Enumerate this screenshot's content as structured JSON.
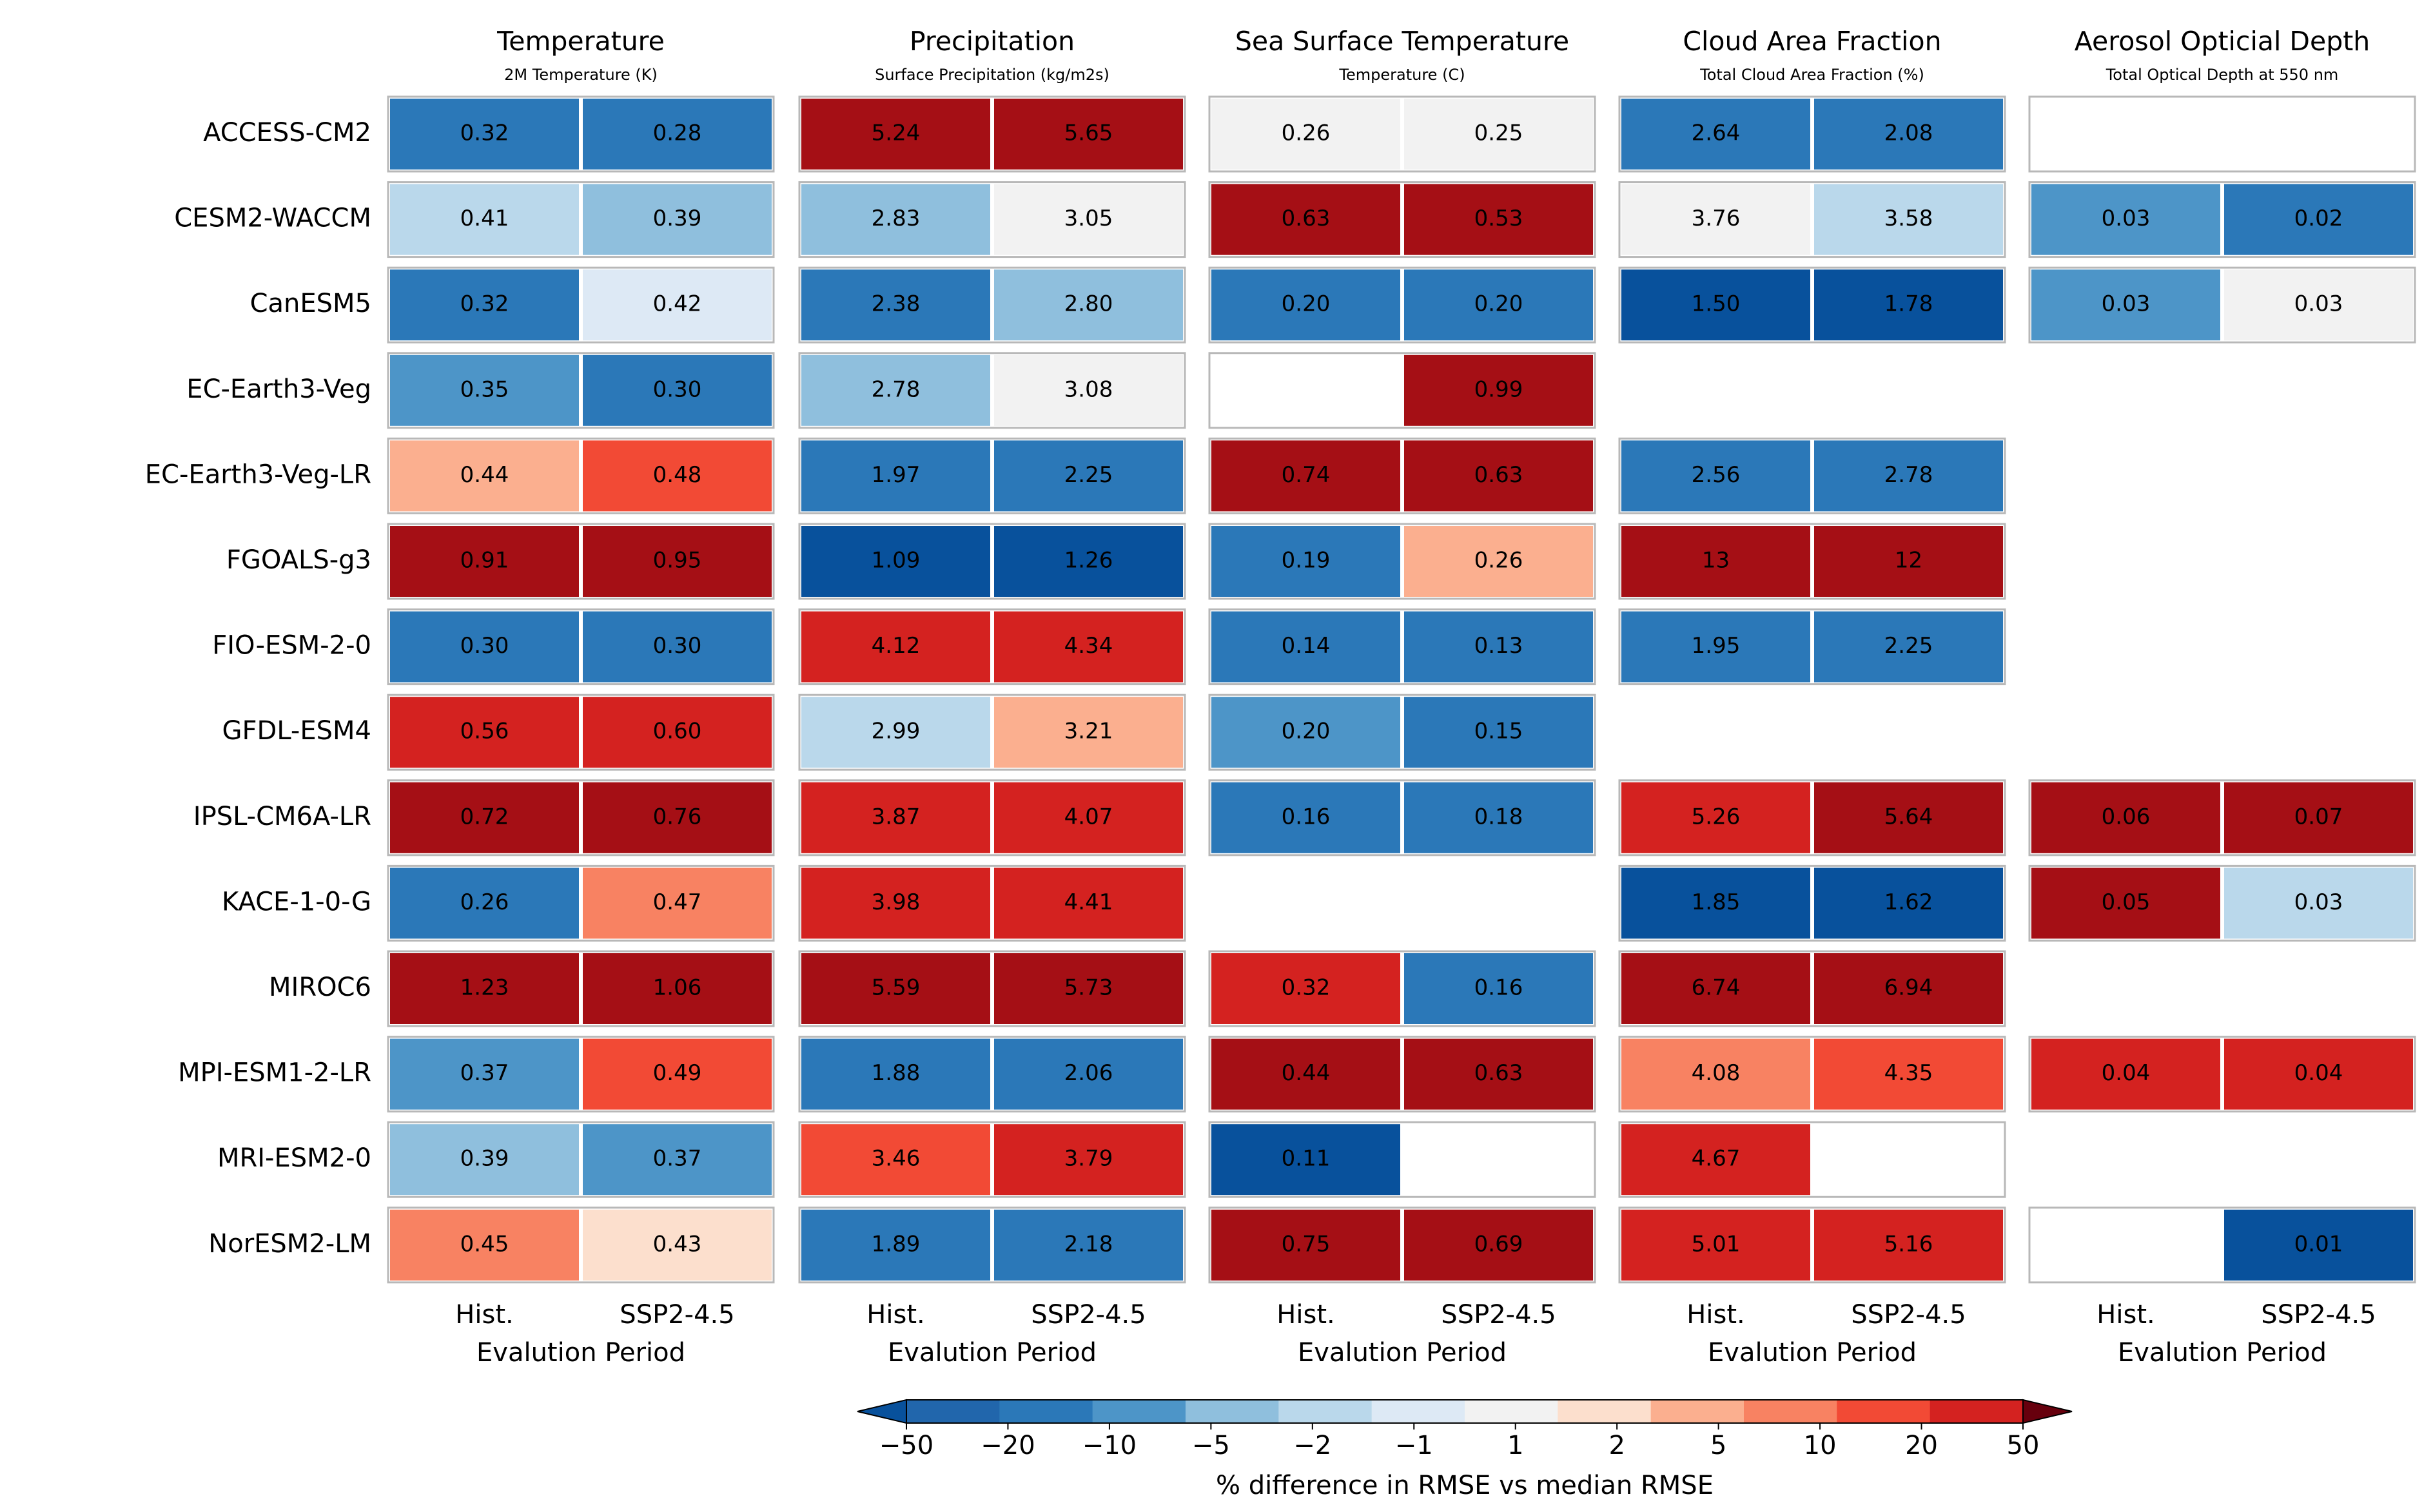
{
  "chart_data": {
    "type": "heatmap",
    "models": [
      "ACCESS-CM2",
      "CESM2-WACCM",
      "CanESM5",
      "EC-Earth3-Veg",
      "EC-Earth3-Veg-LR",
      "FGOALS-g3",
      "FIO-ESM-2-0",
      "GFDL-ESM4",
      "IPSL-CM6A-LR",
      "KACE-1-0-G",
      "MIROC6",
      "MPI-ESM1-2-LR",
      "MRI-ESM2-0",
      "NorESM2-LM"
    ],
    "periods": [
      "Hist.",
      "SSP2-4.5"
    ],
    "xlabel": "Evalution Period",
    "colorbar": {
      "label": "% difference in RMSE vs median RMSE",
      "ticks": [
        "−50",
        "−20",
        "−10",
        "−5",
        "−2",
        "−1",
        "1",
        "2",
        "5",
        "10",
        "20",
        "50"
      ],
      "colors": [
        "#2166ac",
        "#2b78b8",
        "#4d95c8",
        "#8fbfdd",
        "#bad8eb",
        "#dde9f5",
        "#f2f2f2",
        "#fcdfcd",
        "#fbaf8f",
        "#f88262",
        "#f24a35",
        "#d42220"
      ],
      "under_color": "#08519c",
      "over_color": "#67000d"
    },
    "panels": [
      {
        "title": "Temperature",
        "subtitle": "2M Temperature (K)",
        "rows": [
          [
            {
              "v": "0.32",
              "c": "#2b78b8"
            },
            {
              "v": "0.28",
              "c": "#2b78b8"
            }
          ],
          [
            {
              "v": "0.41",
              "c": "#bad8eb"
            },
            {
              "v": "0.39",
              "c": "#8fbfdd"
            }
          ],
          [
            {
              "v": "0.32",
              "c": "#2b78b8"
            },
            {
              "v": "0.42",
              "c": "#dde9f5"
            }
          ],
          [
            {
              "v": "0.35",
              "c": "#4d95c8"
            },
            {
              "v": "0.30",
              "c": "#2b78b8"
            }
          ],
          [
            {
              "v": "0.44",
              "c": "#fbaf8f"
            },
            {
              "v": "0.48",
              "c": "#f24a35"
            }
          ],
          [
            {
              "v": "0.91",
              "c": "#a50f15"
            },
            {
              "v": "0.95",
              "c": "#a50f15"
            }
          ],
          [
            {
              "v": "0.30",
              "c": "#2b78b8"
            },
            {
              "v": "0.30",
              "c": "#2b78b8"
            }
          ],
          [
            {
              "v": "0.56",
              "c": "#d42220"
            },
            {
              "v": "0.60",
              "c": "#d42220"
            }
          ],
          [
            {
              "v": "0.72",
              "c": "#a50f15"
            },
            {
              "v": "0.76",
              "c": "#a50f15"
            }
          ],
          [
            {
              "v": "0.26",
              "c": "#2b78b8"
            },
            {
              "v": "0.47",
              "c": "#f88262"
            }
          ],
          [
            {
              "v": "1.23",
              "c": "#a50f15"
            },
            {
              "v": "1.06",
              "c": "#a50f15"
            }
          ],
          [
            {
              "v": "0.37",
              "c": "#4d95c8"
            },
            {
              "v": "0.49",
              "c": "#f24a35"
            }
          ],
          [
            {
              "v": "0.39",
              "c": "#8fbfdd"
            },
            {
              "v": "0.37",
              "c": "#4d95c8"
            }
          ],
          [
            {
              "v": "0.45",
              "c": "#f88262"
            },
            {
              "v": "0.43",
              "c": "#fcdfcd"
            }
          ]
        ]
      },
      {
        "title": "Precipitation",
        "subtitle": "Surface Precipitation (kg/m2s)",
        "rows": [
          [
            {
              "v": "5.24",
              "c": "#a50f15"
            },
            {
              "v": "5.65",
              "c": "#a50f15"
            }
          ],
          [
            {
              "v": "2.83",
              "c": "#8fbfdd"
            },
            {
              "v": "3.05",
              "c": "#f2f2f2"
            }
          ],
          [
            {
              "v": "2.38",
              "c": "#2b78b8"
            },
            {
              "v": "2.80",
              "c": "#8fbfdd"
            }
          ],
          [
            {
              "v": "2.78",
              "c": "#8fbfdd"
            },
            {
              "v": "3.08",
              "c": "#f2f2f2"
            }
          ],
          [
            {
              "v": "1.97",
              "c": "#2b78b8"
            },
            {
              "v": "2.25",
              "c": "#2b78b8"
            }
          ],
          [
            {
              "v": "1.09",
              "c": "#08519c"
            },
            {
              "v": "1.26",
              "c": "#08519c"
            }
          ],
          [
            {
              "v": "4.12",
              "c": "#d42220"
            },
            {
              "v": "4.34",
              "c": "#d42220"
            }
          ],
          [
            {
              "v": "2.99",
              "c": "#bad8eb"
            },
            {
              "v": "3.21",
              "c": "#fbaf8f"
            }
          ],
          [
            {
              "v": "3.87",
              "c": "#d42220"
            },
            {
              "v": "4.07",
              "c": "#d42220"
            }
          ],
          [
            {
              "v": "3.98",
              "c": "#d42220"
            },
            {
              "v": "4.41",
              "c": "#d42220"
            }
          ],
          [
            {
              "v": "5.59",
              "c": "#a50f15"
            },
            {
              "v": "5.73",
              "c": "#a50f15"
            }
          ],
          [
            {
              "v": "1.88",
              "c": "#2b78b8"
            },
            {
              "v": "2.06",
              "c": "#2b78b8"
            }
          ],
          [
            {
              "v": "3.46",
              "c": "#f24a35"
            },
            {
              "v": "3.79",
              "c": "#d42220"
            }
          ],
          [
            {
              "v": "1.89",
              "c": "#2b78b8"
            },
            {
              "v": "2.18",
              "c": "#2b78b8"
            }
          ]
        ]
      },
      {
        "title": "Sea Surface Temperature",
        "subtitle": "Temperature (C)",
        "rows": [
          [
            {
              "v": "0.26",
              "c": "#f2f2f2"
            },
            {
              "v": "0.25",
              "c": "#f2f2f2"
            }
          ],
          [
            {
              "v": "0.63",
              "c": "#a50f15"
            },
            {
              "v": "0.53",
              "c": "#a50f15"
            }
          ],
          [
            {
              "v": "0.20",
              "c": "#2b78b8"
            },
            {
              "v": "0.20",
              "c": "#2b78b8"
            }
          ],
          [
            {
              "v": "",
              "c": "#ffffff"
            },
            {
              "v": "0.99",
              "c": "#a50f15"
            }
          ],
          [
            {
              "v": "0.74",
              "c": "#a50f15"
            },
            {
              "v": "0.63",
              "c": "#a50f15"
            }
          ],
          [
            {
              "v": "0.19",
              "c": "#2b78b8"
            },
            {
              "v": "0.26",
              "c": "#fbaf8f"
            }
          ],
          [
            {
              "v": "0.14",
              "c": "#2b78b8"
            },
            {
              "v": "0.13",
              "c": "#2b78b8"
            }
          ],
          [
            {
              "v": "0.20",
              "c": "#4d95c8"
            },
            {
              "v": "0.15",
              "c": "#2b78b8"
            }
          ],
          [
            {
              "v": "0.16",
              "c": "#2b78b8"
            },
            {
              "v": "0.18",
              "c": "#2b78b8"
            }
          ],
          null,
          [
            {
              "v": "0.32",
              "c": "#d42220"
            },
            {
              "v": "0.16",
              "c": "#2b78b8"
            }
          ],
          [
            {
              "v": "0.44",
              "c": "#a50f15"
            },
            {
              "v": "0.63",
              "c": "#a50f15"
            }
          ],
          [
            {
              "v": "0.11",
              "c": "#08519c"
            },
            {
              "v": "",
              "c": "#ffffff"
            }
          ],
          [
            {
              "v": "0.75",
              "c": "#a50f15"
            },
            {
              "v": "0.69",
              "c": "#a50f15"
            }
          ]
        ]
      },
      {
        "title": "Cloud Area Fraction",
        "subtitle": "Total Cloud Area Fraction (%)",
        "rows": [
          [
            {
              "v": "2.64",
              "c": "#2b78b8"
            },
            {
              "v": "2.08",
              "c": "#2b78b8"
            }
          ],
          [
            {
              "v": "3.76",
              "c": "#f2f2f2"
            },
            {
              "v": "3.58",
              "c": "#bad8eb"
            }
          ],
          [
            {
              "v": "1.50",
              "c": "#08519c"
            },
            {
              "v": "1.78",
              "c": "#08519c"
            }
          ],
          null,
          [
            {
              "v": "2.56",
              "c": "#2b78b8"
            },
            {
              "v": "2.78",
              "c": "#2b78b8"
            }
          ],
          [
            {
              "v": "13",
              "c": "#a50f15"
            },
            {
              "v": "12",
              "c": "#a50f15"
            }
          ],
          [
            {
              "v": "1.95",
              "c": "#2b78b8"
            },
            {
              "v": "2.25",
              "c": "#2b78b8"
            }
          ],
          null,
          [
            {
              "v": "5.26",
              "c": "#d42220"
            },
            {
              "v": "5.64",
              "c": "#a50f15"
            }
          ],
          [
            {
              "v": "1.85",
              "c": "#08519c"
            },
            {
              "v": "1.62",
              "c": "#08519c"
            }
          ],
          [
            {
              "v": "6.74",
              "c": "#a50f15"
            },
            {
              "v": "6.94",
              "c": "#a50f15"
            }
          ],
          [
            {
              "v": "4.08",
              "c": "#f88262"
            },
            {
              "v": "4.35",
              "c": "#f24a35"
            }
          ],
          [
            {
              "v": "4.67",
              "c": "#d42220"
            },
            {
              "v": "",
              "c": "#ffffff"
            }
          ],
          [
            {
              "v": "5.01",
              "c": "#d42220"
            },
            {
              "v": "5.16",
              "c": "#d42220"
            }
          ]
        ]
      },
      {
        "title": "Aerosol Opticial Depth",
        "subtitle": "Total Optical Depth at 550 nm",
        "rows": [
          [
            {
              "v": "",
              "c": "#ffffff"
            },
            {
              "v": "",
              "c": "#ffffff"
            }
          ],
          [
            {
              "v": "0.03",
              "c": "#4d95c8"
            },
            {
              "v": "0.02",
              "c": "#2b78b8"
            }
          ],
          [
            {
              "v": "0.03",
              "c": "#4d95c8"
            },
            {
              "v": "0.03",
              "c": "#f2f2f2"
            }
          ],
          null,
          null,
          null,
          null,
          null,
          [
            {
              "v": "0.06",
              "c": "#a50f15"
            },
            {
              "v": "0.07",
              "c": "#a50f15"
            }
          ],
          [
            {
              "v": "0.05",
              "c": "#a50f15"
            },
            {
              "v": "0.03",
              "c": "#bad8eb"
            }
          ],
          null,
          [
            {
              "v": "0.04",
              "c": "#d42220"
            },
            {
              "v": "0.04",
              "c": "#d42220"
            }
          ],
          null,
          [
            {
              "v": "",
              "c": "#ffffff"
            },
            {
              "v": "0.01",
              "c": "#08519c"
            }
          ]
        ]
      }
    ]
  }
}
